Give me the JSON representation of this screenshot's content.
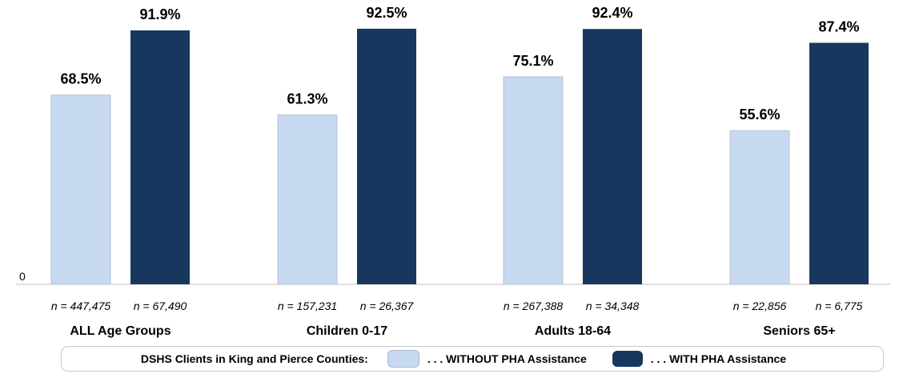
{
  "chart_data": {
    "type": "bar",
    "categories": [
      "ALL Age Groups",
      "Children 0-17",
      "Adults 18-64",
      "Seniors 65+"
    ],
    "series": [
      {
        "name": ". . . WITHOUT PHA Assistance",
        "values": [
          68.5,
          61.3,
          75.1,
          55.6
        ],
        "labels": [
          "68.5%",
          "61.3%",
          "75.1%",
          "55.6%"
        ],
        "n": [
          "n = 447,475",
          "n = 157,231",
          "n = 267,388",
          "n = 22,856"
        ],
        "color": "#c6d9f0"
      },
      {
        "name": ". . . WITH PHA Assistance",
        "values": [
          91.9,
          92.5,
          92.4,
          87.4
        ],
        "labels": [
          "91.9%",
          "92.5%",
          "92.4%",
          "87.4%"
        ],
        "n": [
          "n = 67,490",
          "n = 26,367",
          "n = 34,348",
          "n = 6,775"
        ],
        "color": "#17375e"
      }
    ],
    "y_tick_label": "0",
    "ylim": [
      0,
      100
    ],
    "legend_title": "DSHS Clients in King and Pierce Counties:",
    "legend_position": "bottom"
  }
}
